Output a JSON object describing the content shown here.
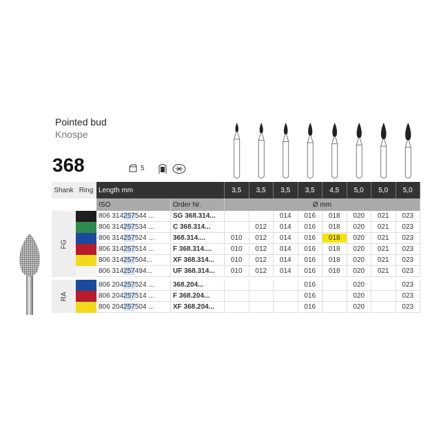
{
  "title": "Pointed bud",
  "subtitle": "Knospe",
  "number": "368",
  "pack_qty": "5",
  "icons": [
    "package-icon",
    "sterilisation-icon",
    "disinfection-icon"
  ],
  "header": {
    "shank": "Shank",
    "ring": "Ring",
    "length": "Length mm",
    "iso": "ISO",
    "order": "Order Nr.",
    "diameter": "Ø mm"
  },
  "lengths": [
    "3,5",
    "3,5",
    "3,5",
    "3,5",
    "4,5",
    "5,0",
    "5,0",
    "5,0"
  ],
  "groups": [
    {
      "shank": "FG",
      "rows": [
        {
          "ring": "#1e1e1e",
          "iso_a": "806 314",
          "iso_b": "257",
          "iso_c": "544 ...",
          "order": "SG 368.314...",
          "sizes": [
            "",
            "",
            "014",
            "016",
            "018",
            "020",
            "021",
            "023"
          ]
        },
        {
          "ring": "#2e8a4e",
          "iso_a": "806 314",
          "iso_b": "257",
          "iso_c": "534 ...",
          "order": "C 368.314...",
          "sizes": [
            "",
            "012",
            "014",
            "016",
            "018",
            "020",
            "021",
            "023"
          ]
        },
        {
          "ring": "#1a4a9c",
          "iso_a": "806 314",
          "iso_b": "257",
          "iso_c": "524 ...",
          "order": "368.314....",
          "sizes": [
            "010",
            "012",
            "014",
            "016",
            "018",
            "020",
            "021",
            "023"
          ]
        },
        {
          "ring": "#b81c2a",
          "iso_a": "806 314",
          "iso_b": "257",
          "iso_c": "514 ...",
          "order": "F 368.314....",
          "sizes": [
            "010",
            "012",
            "014",
            "016",
            "018",
            "020",
            "021",
            "023"
          ]
        },
        {
          "ring": "#f2d91c",
          "iso_a": "806 314",
          "iso_b": "257",
          "iso_c": "504...",
          "order": "XF 368.314...",
          "sizes": [
            "010",
            "012",
            "014",
            "016",
            "018",
            "020",
            "021",
            "023"
          ]
        },
        {
          "ring": "#f4f4f4",
          "iso_a": "806 314",
          "iso_b": "257",
          "iso_c": "494...",
          "order": "UF 368.314...",
          "sizes": [
            "010",
            "012",
            "014",
            "016",
            "018",
            "020",
            "021",
            "023"
          ]
        }
      ]
    },
    {
      "shank": "RA",
      "rows": [
        {
          "ring": "#1a4a9c",
          "iso_a": "806 204",
          "iso_b": "257",
          "iso_c": "524 ...",
          "order": "368.204...",
          "sizes": [
            "",
            "",
            "",
            "016",
            "",
            "020",
            "",
            "023"
          ]
        },
        {
          "ring": "#b81c2a",
          "iso_a": "806 204",
          "iso_b": "257",
          "iso_c": "514 ...",
          "order": "F 368.204...",
          "sizes": [
            "",
            "",
            "",
            "016",
            "",
            "020",
            "",
            "023"
          ]
        },
        {
          "ring": "#f2d91c",
          "iso_a": "806 204",
          "iso_b": "257",
          "iso_c": "504 ...",
          "order": "XF 368.204...",
          "sizes": [
            "",
            "",
            "",
            "016",
            "",
            "020",
            "",
            "023"
          ]
        }
      ]
    }
  ],
  "highlight": {
    "group": 0,
    "row": 2,
    "col": 4,
    "color": "#f7e300"
  }
}
